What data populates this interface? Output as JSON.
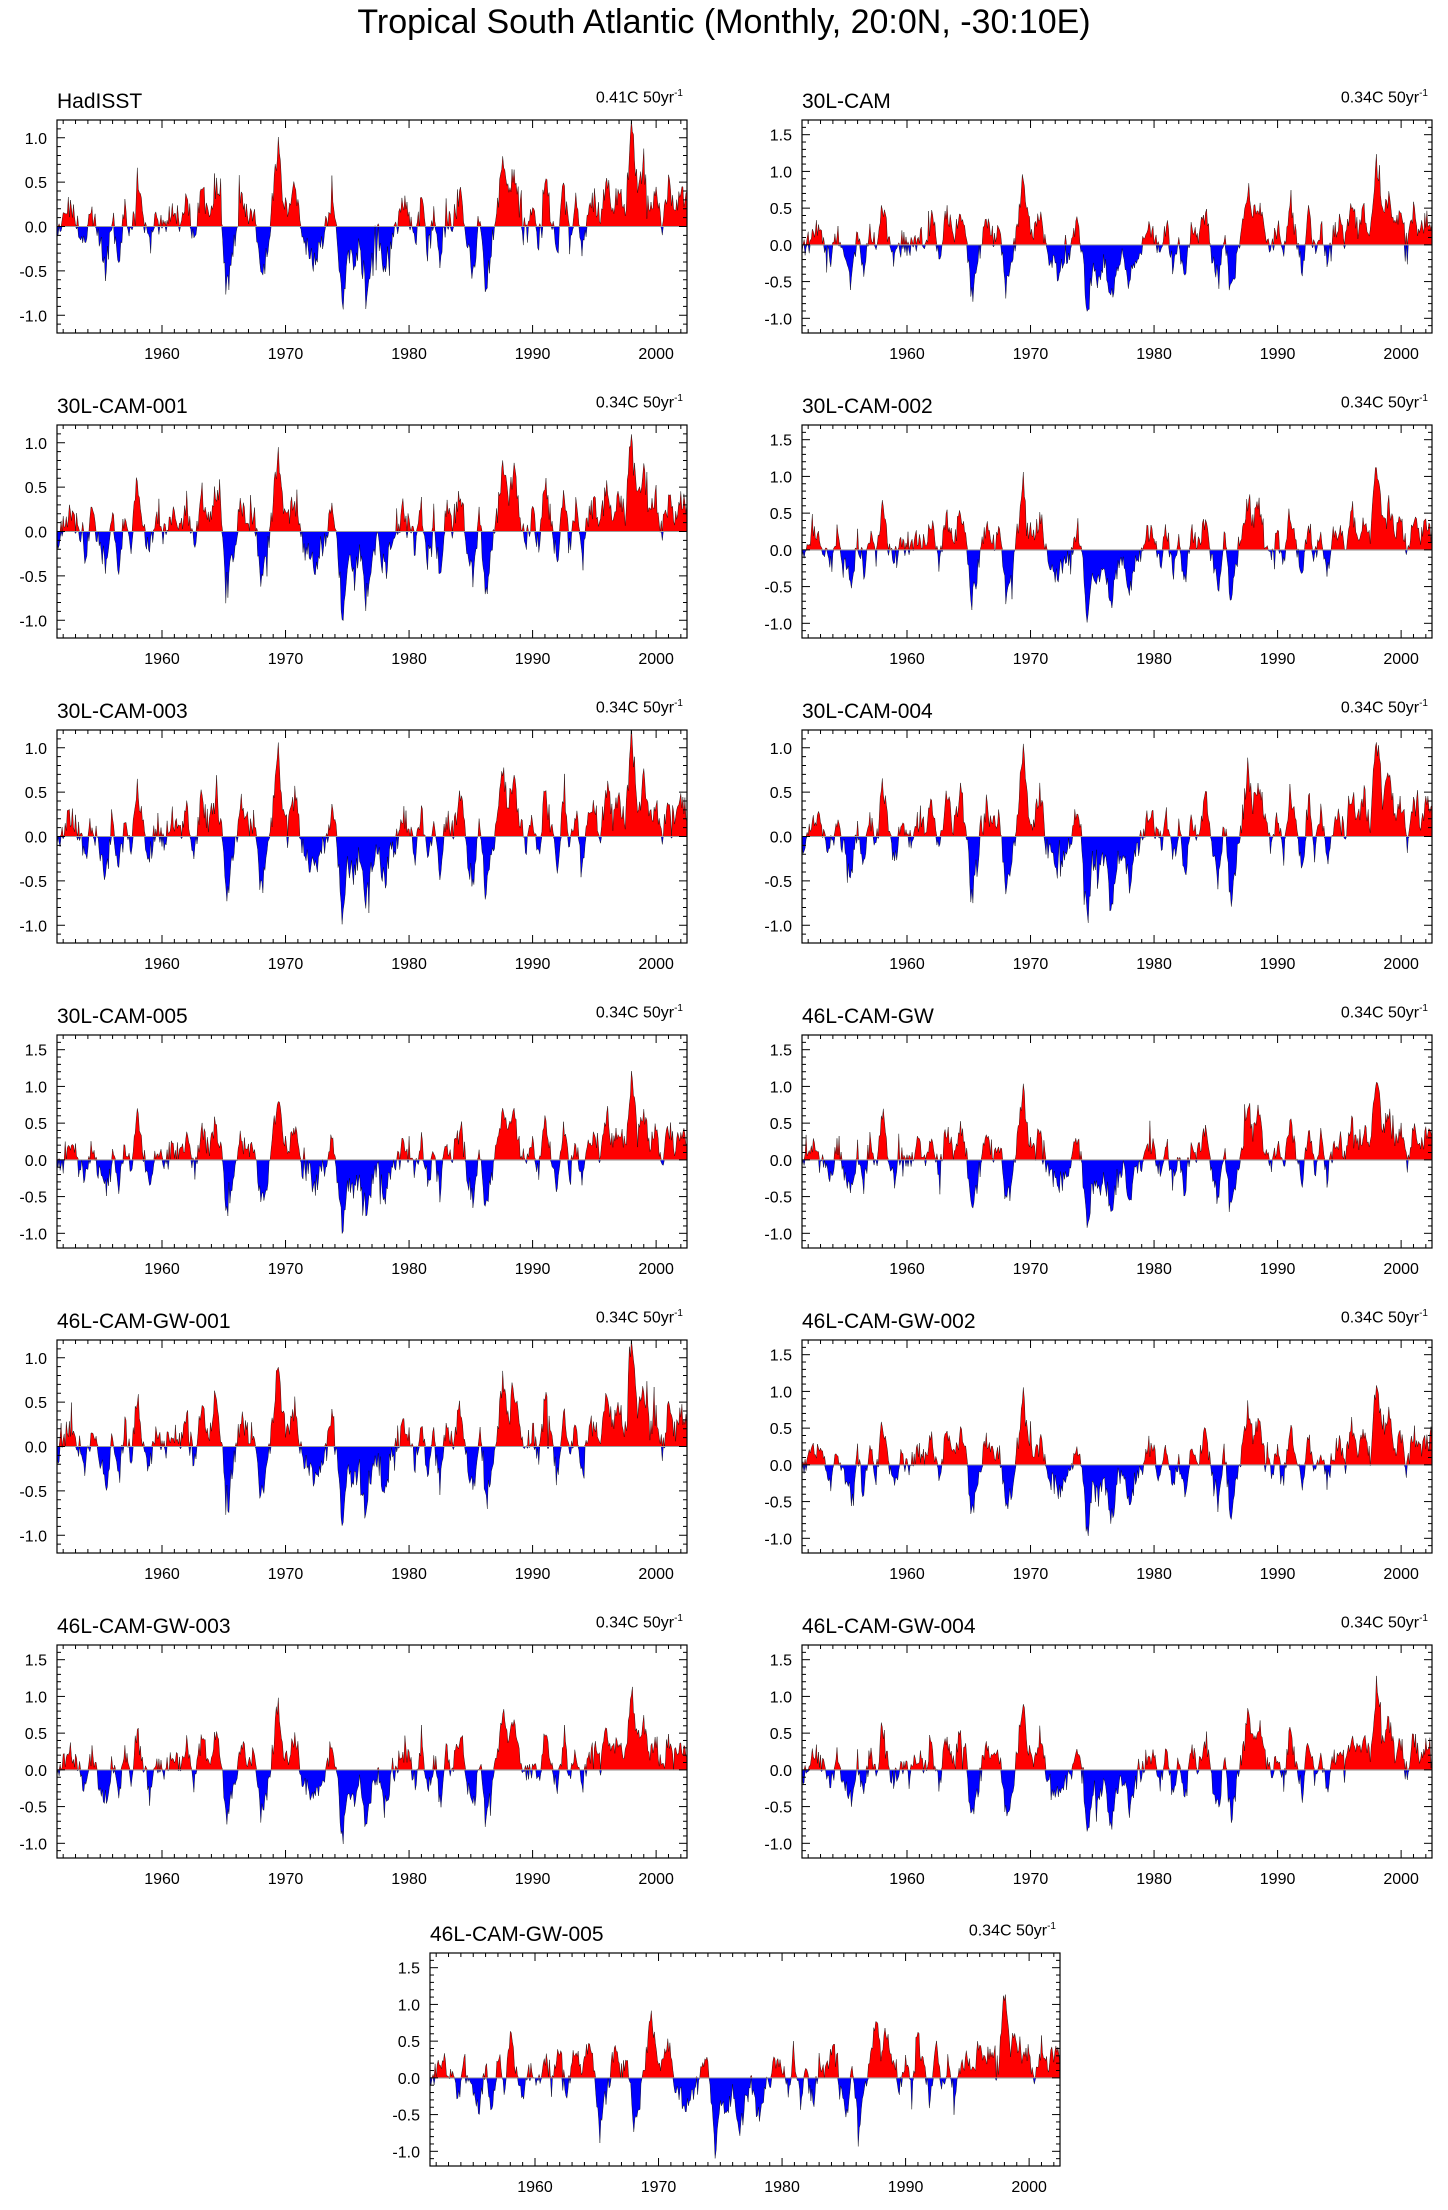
{
  "figure_title": "Tropical South Atlantic (Monthly, 20:0N, -30:10E)",
  "colors": {
    "positive": "#ff0000",
    "negative": "#0000ff",
    "zero_line": "#9e9e9e",
    "axis": "#000000"
  },
  "x_tick_labels": [
    "1960",
    "1970",
    "1980",
    "1990",
    "2000"
  ],
  "chart_data": [
    {
      "type": "area",
      "name": "HadISST",
      "trend_text": "0.41C 50yr",
      "trend_unit": "-1",
      "ylim": [
        -1.2,
        1.2
      ],
      "yticks": [
        "1.0",
        "0.5",
        "0.0",
        "-0.5",
        "-1.0"
      ],
      "ytick_values": [
        1.0,
        0.5,
        0.0,
        -0.5,
        -1.0
      ],
      "xlim": [
        1951.5,
        2002.5
      ],
      "xticks": [
        1960,
        1970,
        1980,
        1990,
        2000
      ],
      "xlabel": "",
      "ylabel": ""
    },
    {
      "type": "area",
      "name": "30L-CAM",
      "trend_text": "0.34C 50yr",
      "trend_unit": "-1",
      "ylim": [
        -1.2,
        1.7
      ],
      "yticks": [
        "1.5",
        "1.0",
        "0.5",
        "0.0",
        "-0.5",
        "-1.0"
      ],
      "ytick_values": [
        1.5,
        1.0,
        0.5,
        0.0,
        -0.5,
        -1.0
      ],
      "xlim": [
        1951.5,
        2002.5
      ],
      "xticks": [
        1960,
        1970,
        1980,
        1990,
        2000
      ],
      "xlabel": "",
      "ylabel": ""
    },
    {
      "type": "area",
      "name": "30L-CAM-001",
      "trend_text": "0.34C 50yr",
      "trend_unit": "-1",
      "ylim": [
        -1.2,
        1.2
      ],
      "yticks": [
        "1.0",
        "0.5",
        "0.0",
        "-0.5",
        "-1.0"
      ],
      "ytick_values": [
        1.0,
        0.5,
        0.0,
        -0.5,
        -1.0
      ],
      "xlim": [
        1951.5,
        2002.5
      ],
      "xticks": [
        1960,
        1970,
        1980,
        1990,
        2000
      ],
      "xlabel": "",
      "ylabel": ""
    },
    {
      "type": "area",
      "name": "30L-CAM-002",
      "trend_text": "0.34C 50yr",
      "trend_unit": "-1",
      "ylim": [
        -1.2,
        1.7
      ],
      "yticks": [
        "1.5",
        "1.0",
        "0.5",
        "0.0",
        "-0.5",
        "-1.0"
      ],
      "ytick_values": [
        1.5,
        1.0,
        0.5,
        0.0,
        -0.5,
        -1.0
      ],
      "xlim": [
        1951.5,
        2002.5
      ],
      "xticks": [
        1960,
        1970,
        1980,
        1990,
        2000
      ],
      "xlabel": "",
      "ylabel": ""
    },
    {
      "type": "area",
      "name": "30L-CAM-003",
      "trend_text": "0.34C 50yr",
      "trend_unit": "-1",
      "ylim": [
        -1.2,
        1.2
      ],
      "yticks": [
        "1.0",
        "0.5",
        "0.0",
        "-0.5",
        "-1.0"
      ],
      "ytick_values": [
        1.0,
        0.5,
        0.0,
        -0.5,
        -1.0
      ],
      "xlim": [
        1951.5,
        2002.5
      ],
      "xticks": [
        1960,
        1970,
        1980,
        1990,
        2000
      ],
      "xlabel": "",
      "ylabel": ""
    },
    {
      "type": "area",
      "name": "30L-CAM-004",
      "trend_text": "0.34C 50yr",
      "trend_unit": "-1",
      "ylim": [
        -1.2,
        1.2
      ],
      "yticks": [
        "1.0",
        "0.5",
        "0.0",
        "-0.5",
        "-1.0"
      ],
      "ytick_values": [
        1.0,
        0.5,
        0.0,
        -0.5,
        -1.0
      ],
      "xlim": [
        1951.5,
        2002.5
      ],
      "xticks": [
        1960,
        1970,
        1980,
        1990,
        2000
      ],
      "xlabel": "",
      "ylabel": ""
    },
    {
      "type": "area",
      "name": "30L-CAM-005",
      "trend_text": "0.34C 50yr",
      "trend_unit": "-1",
      "ylim": [
        -1.2,
        1.7
      ],
      "yticks": [
        "1.5",
        "1.0",
        "0.5",
        "0.0",
        "-0.5",
        "-1.0"
      ],
      "ytick_values": [
        1.5,
        1.0,
        0.5,
        0.0,
        -0.5,
        -1.0
      ],
      "xlim": [
        1951.5,
        2002.5
      ],
      "xticks": [
        1960,
        1970,
        1980,
        1990,
        2000
      ],
      "xlabel": "",
      "ylabel": ""
    },
    {
      "type": "area",
      "name": "46L-CAM-GW",
      "trend_text": "0.34C 50yr",
      "trend_unit": "-1",
      "ylim": [
        -1.2,
        1.7
      ],
      "yticks": [
        "1.5",
        "1.0",
        "0.5",
        "0.0",
        "-0.5",
        "-1.0"
      ],
      "ytick_values": [
        1.5,
        1.0,
        0.5,
        0.0,
        -0.5,
        -1.0
      ],
      "xlim": [
        1951.5,
        2002.5
      ],
      "xticks": [
        1960,
        1970,
        1980,
        1990,
        2000
      ],
      "xlabel": "",
      "ylabel": ""
    },
    {
      "type": "area",
      "name": "46L-CAM-GW-001",
      "trend_text": "0.34C 50yr",
      "trend_unit": "-1",
      "ylim": [
        -1.2,
        1.2
      ],
      "yticks": [
        "1.0",
        "0.5",
        "0.0",
        "-0.5",
        "-1.0"
      ],
      "ytick_values": [
        1.0,
        0.5,
        0.0,
        -0.5,
        -1.0
      ],
      "xlim": [
        1951.5,
        2002.5
      ],
      "xticks": [
        1960,
        1970,
        1980,
        1990,
        2000
      ],
      "xlabel": "",
      "ylabel": ""
    },
    {
      "type": "area",
      "name": "46L-CAM-GW-002",
      "trend_text": "0.34C 50yr",
      "trend_unit": "-1",
      "ylim": [
        -1.2,
        1.7
      ],
      "yticks": [
        "1.5",
        "1.0",
        "0.5",
        "0.0",
        "-0.5",
        "-1.0"
      ],
      "ytick_values": [
        1.5,
        1.0,
        0.5,
        0.0,
        -0.5,
        -1.0
      ],
      "xlim": [
        1951.5,
        2002.5
      ],
      "xticks": [
        1960,
        1970,
        1980,
        1990,
        2000
      ],
      "xlabel": "",
      "ylabel": ""
    },
    {
      "type": "area",
      "name": "46L-CAM-GW-003",
      "trend_text": "0.34C 50yr",
      "trend_unit": "-1",
      "ylim": [
        -1.2,
        1.7
      ],
      "yticks": [
        "1.5",
        "1.0",
        "0.5",
        "0.0",
        "-0.5",
        "-1.0"
      ],
      "ytick_values": [
        1.5,
        1.0,
        0.5,
        0.0,
        -0.5,
        -1.0
      ],
      "xlim": [
        1951.5,
        2002.5
      ],
      "xticks": [
        1960,
        1970,
        1980,
        1990,
        2000
      ],
      "xlabel": "",
      "ylabel": ""
    },
    {
      "type": "area",
      "name": "46L-CAM-GW-004",
      "trend_text": "0.34C 50yr",
      "trend_unit": "-1",
      "ylim": [
        -1.2,
        1.7
      ],
      "yticks": [
        "1.5",
        "1.0",
        "0.5",
        "0.0",
        "-0.5",
        "-1.0"
      ],
      "ytick_values": [
        1.5,
        1.0,
        0.5,
        0.0,
        -0.5,
        -1.0
      ],
      "xlim": [
        1951.5,
        2002.5
      ],
      "xticks": [
        1960,
        1970,
        1980,
        1990,
        2000
      ],
      "xlabel": "",
      "ylabel": ""
    },
    {
      "type": "area",
      "name": "46L-CAM-GW-005",
      "trend_text": "0.34C 50yr",
      "trend_unit": "-1",
      "ylim": [
        -1.2,
        1.7
      ],
      "yticks": [
        "1.5",
        "1.0",
        "0.5",
        "0.0",
        "-0.5",
        "-1.0"
      ],
      "ytick_values": [
        1.5,
        1.0,
        0.5,
        0.0,
        -0.5,
        -1.0
      ],
      "xlim": [
        1951.5,
        2002.5
      ],
      "xticks": [
        1960,
        1970,
        1980,
        1990,
        2000
      ],
      "xlabel": "",
      "ylabel": ""
    }
  ],
  "shared_anomaly_series": {
    "description_units": "degC anomaly vs year",
    "key_points": [
      [
        1951.5,
        -0.15
      ],
      [
        1952.0,
        0.1
      ],
      [
        1952.6,
        0.25
      ],
      [
        1953.2,
        0.05
      ],
      [
        1953.8,
        -0.25
      ],
      [
        1954.3,
        0.2
      ],
      [
        1954.8,
        -0.1
      ],
      [
        1955.5,
        -0.45
      ],
      [
        1956.0,
        0.15
      ],
      [
        1956.5,
        -0.4
      ],
      [
        1957.0,
        0.25
      ],
      [
        1957.5,
        -0.15
      ],
      [
        1958.0,
        0.6
      ],
      [
        1958.5,
        0.05
      ],
      [
        1959.0,
        -0.25
      ],
      [
        1959.5,
        0.1
      ],
      [
        1960.2,
        -0.05
      ],
      [
        1960.8,
        0.2
      ],
      [
        1961.5,
        0.05
      ],
      [
        1962.0,
        0.35
      ],
      [
        1962.6,
        -0.2
      ],
      [
        1963.2,
        0.45
      ],
      [
        1963.8,
        0.1
      ],
      [
        1964.3,
        0.5
      ],
      [
        1964.8,
        0.15
      ],
      [
        1965.2,
        -0.75
      ],
      [
        1965.8,
        -0.2
      ],
      [
        1966.4,
        0.35
      ],
      [
        1967.0,
        0.1
      ],
      [
        1967.5,
        0.2
      ],
      [
        1968.0,
        -0.6
      ],
      [
        1968.5,
        -0.3
      ],
      [
        1969.0,
        0.35
      ],
      [
        1969.4,
        0.95
      ],
      [
        1969.8,
        0.3
      ],
      [
        1970.3,
        0.15
      ],
      [
        1970.8,
        0.5
      ],
      [
        1971.3,
        -0.1
      ],
      [
        1971.8,
        -0.25
      ],
      [
        1972.3,
        -0.4
      ],
      [
        1972.8,
        -0.2
      ],
      [
        1973.3,
        -0.05
      ],
      [
        1973.8,
        0.35
      ],
      [
        1974.2,
        -0.1
      ],
      [
        1974.6,
        -1.0
      ],
      [
        1975.0,
        -0.3
      ],
      [
        1975.5,
        -0.45
      ],
      [
        1976.0,
        -0.2
      ],
      [
        1976.5,
        -0.8
      ],
      [
        1977.0,
        -0.3
      ],
      [
        1977.5,
        -0.1
      ],
      [
        1978.0,
        -0.55
      ],
      [
        1978.5,
        -0.15
      ],
      [
        1979.0,
        -0.05
      ],
      [
        1979.5,
        0.25
      ],
      [
        1980.0,
        0.15
      ],
      [
        1980.5,
        -0.2
      ],
      [
        1981.0,
        0.3
      ],
      [
        1981.5,
        -0.3
      ],
      [
        1982.0,
        0.1
      ],
      [
        1982.5,
        -0.45
      ],
      [
        1983.0,
        0.25
      ],
      [
        1983.5,
        0.05
      ],
      [
        1984.2,
        0.45
      ],
      [
        1984.7,
        -0.2
      ],
      [
        1985.2,
        -0.55
      ],
      [
        1985.7,
        0.2
      ],
      [
        1986.2,
        -0.7
      ],
      [
        1986.7,
        -0.2
      ],
      [
        1987.2,
        0.25
      ],
      [
        1987.6,
        0.8
      ],
      [
        1988.0,
        0.35
      ],
      [
        1988.5,
        0.65
      ],
      [
        1989.0,
        0.15
      ],
      [
        1989.5,
        -0.1
      ],
      [
        1990.0,
        0.2
      ],
      [
        1990.5,
        -0.2
      ],
      [
        1991.0,
        0.55
      ],
      [
        1991.5,
        0.1
      ],
      [
        1992.0,
        -0.35
      ],
      [
        1992.5,
        0.45
      ],
      [
        1993.0,
        -0.15
      ],
      [
        1993.5,
        0.25
      ],
      [
        1994.0,
        -0.25
      ],
      [
        1994.5,
        0.15
      ],
      [
        1995.0,
        0.3
      ],
      [
        1995.5,
        0.05
      ],
      [
        1996.0,
        0.55
      ],
      [
        1996.5,
        0.2
      ],
      [
        1997.0,
        0.45
      ],
      [
        1997.5,
        0.15
      ],
      [
        1998.0,
        1.15
      ],
      [
        1998.5,
        0.4
      ],
      [
        1999.0,
        0.65
      ],
      [
        1999.5,
        0.2
      ],
      [
        2000.0,
        0.4
      ],
      [
        2000.5,
        -0.05
      ],
      [
        2001.0,
        0.45
      ],
      [
        2001.5,
        0.15
      ],
      [
        2002.0,
        0.35
      ],
      [
        2002.5,
        0.3
      ]
    ]
  }
}
